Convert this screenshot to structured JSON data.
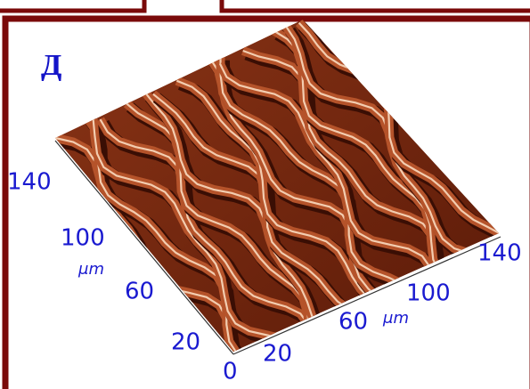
{
  "panel_label": "Д",
  "left_axis": {
    "ticks": [
      140,
      100,
      60,
      20
    ],
    "unit": "μm"
  },
  "right_axis": {
    "ticks": [
      20,
      60,
      100,
      140
    ],
    "unit": "μm"
  },
  "origin": 0
}
